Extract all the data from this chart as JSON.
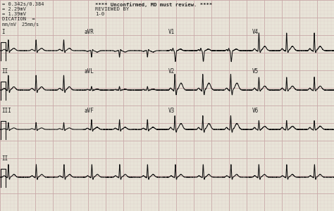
{
  "background_color": "#e8e4d8",
  "grid_major_color": "#c8a8a8",
  "grid_minor_color": "#dcc8c8",
  "line_color": "#111111",
  "text_color": "#222222",
  "fig_width": 4.74,
  "fig_height": 3.0,
  "dpi": 100,
  "header": {
    "line1": "= 0.342s/0.384",
    "line2": "= 2.29mV",
    "line3": "= 1.39mV",
    "line4": "DICATION  =",
    "center1": "**** Unconfirmed, MD must review. ****",
    "center2": "REVIEWED BY",
    "center3": "1-0",
    "bottom": "mm/mV  25mm/s"
  },
  "row_labels": [
    [
      "I",
      "aVR",
      "V1",
      "V4"
    ],
    [
      "II",
      "aVL",
      "V2",
      "V5"
    ],
    [
      "III",
      "aVF",
      "V3",
      "V6"
    ],
    [
      "II",
      "",
      "",
      ""
    ]
  ],
  "hr": 72,
  "noise_seed": 42
}
